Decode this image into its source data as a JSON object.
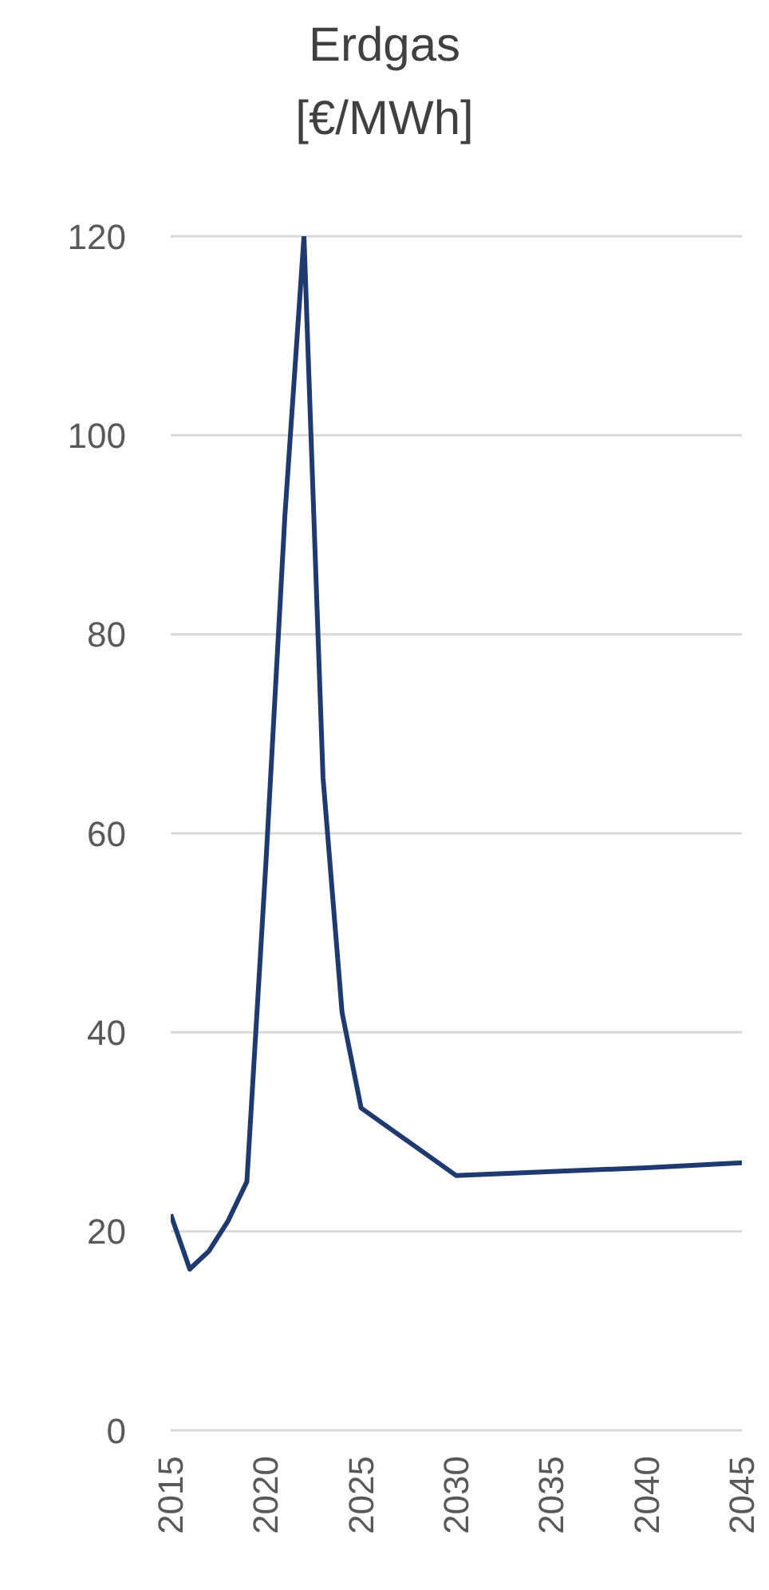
{
  "chart_data": {
    "type": "line",
    "title": "Erdgas",
    "subtitle": "[€/MWh]",
    "x": [
      2015,
      2016,
      2017,
      2018,
      2019,
      2020,
      2021,
      2022,
      2023,
      2024,
      2025,
      2030,
      2035,
      2040,
      2045
    ],
    "series": [
      {
        "color": "#1f3a6e",
        "values": [
          21.7,
          16.2,
          18,
          21,
          25,
          57,
          92,
          120,
          65.6,
          42,
          32.4,
          25.6,
          26,
          26.4,
          26.9
        ]
      }
    ],
    "xlim": [
      2015,
      2045
    ],
    "xticks": [
      2015,
      2020,
      2025,
      2030,
      2035,
      2040,
      2045
    ],
    "ylim": [
      0,
      120
    ],
    "yticks": [
      0,
      20,
      40,
      60,
      80,
      100,
      120
    ],
    "grid": "y",
    "legend": false,
    "marker": "none",
    "line_style": "solid"
  }
}
